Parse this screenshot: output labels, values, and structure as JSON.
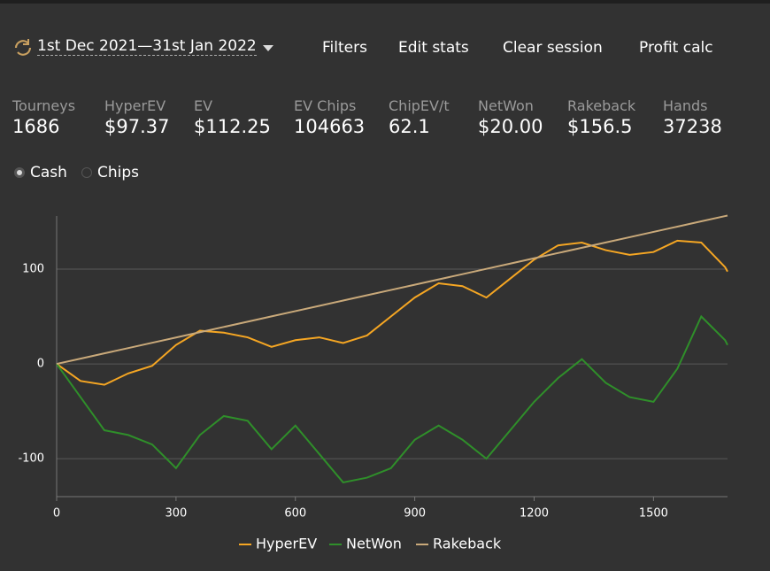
{
  "header": {
    "date_range": "1st Dec 2021—31st Jan 2022",
    "menu": [
      "Filters",
      "Edit stats",
      "Clear session",
      "Profit calc"
    ]
  },
  "stats": [
    {
      "label": "Tourneys",
      "value": "1686"
    },
    {
      "label": "HyperEV",
      "value": "$97.37"
    },
    {
      "label": "EV",
      "value": "$112.25"
    },
    {
      "label": "EV Chips",
      "value": "104663"
    },
    {
      "label": "ChipEV/t",
      "value": "62.1"
    },
    {
      "label": "NetWon",
      "value": "$20.00"
    },
    {
      "label": "Rakeback",
      "value": "$156.5"
    },
    {
      "label": "Hands",
      "value": "37238"
    }
  ],
  "mode": {
    "options": [
      "Cash",
      "Chips"
    ],
    "selected": "Cash"
  },
  "chart_data": {
    "type": "line",
    "x": [
      0,
      60,
      120,
      180,
      240,
      300,
      360,
      420,
      480,
      540,
      600,
      660,
      720,
      780,
      840,
      900,
      960,
      1020,
      1080,
      1140,
      1200,
      1260,
      1320,
      1380,
      1440,
      1500,
      1560,
      1620,
      1680,
      1686
    ],
    "series": [
      {
        "name": "HyperEV",
        "color": "#f5a623",
        "values": [
          0,
          -18,
          -22,
          -10,
          -2,
          20,
          35,
          33,
          28,
          18,
          25,
          28,
          22,
          30,
          50,
          70,
          85,
          82,
          70,
          90,
          110,
          125,
          128,
          120,
          115,
          118,
          130,
          128,
          102,
          97.37
        ]
      },
      {
        "name": "NetWon",
        "color": "#2f8f2a",
        "values": [
          0,
          -35,
          -70,
          -75,
          -85,
          -110,
          -75,
          -55,
          -60,
          -90,
          -65,
          -95,
          -125,
          -120,
          -110,
          -80,
          -65,
          -80,
          -100,
          -70,
          -40,
          -15,
          5,
          -20,
          -35,
          -40,
          -5,
          50,
          25,
          20
        ]
      },
      {
        "name": "Rakeback",
        "color": "#c9a97a",
        "values": [
          0,
          5.57,
          11.14,
          16.71,
          22.28,
          27.85,
          33.42,
          38.99,
          44.56,
          50.12,
          55.69,
          61.26,
          66.83,
          72.4,
          77.97,
          83.54,
          89.11,
          94.68,
          100.25,
          105.82,
          111.39,
          116.96,
          122.53,
          128.1,
          133.67,
          139.23,
          144.8,
          150.37,
          155.94,
          156.5
        ]
      }
    ],
    "xlim": [
      0,
      1686
    ],
    "xticks": [
      0,
      300,
      600,
      900,
      1200,
      1500
    ],
    "ylim": [
      -140,
      156
    ],
    "yticks": [
      -100,
      0,
      100
    ],
    "grid": true,
    "legend": "bottom"
  }
}
